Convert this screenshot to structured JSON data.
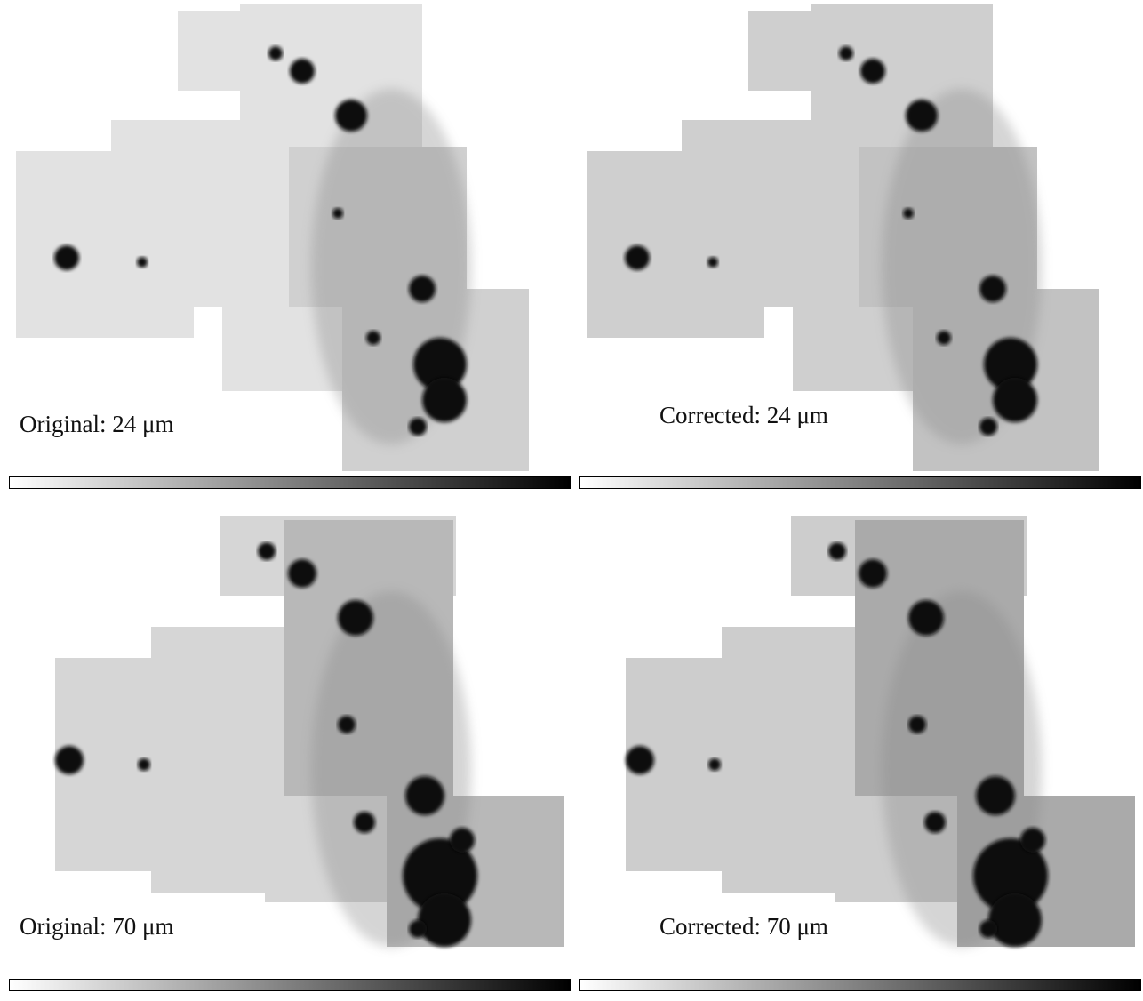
{
  "panels": [
    {
      "label": "Original: 24 μm"
    },
    {
      "label": "Corrected: 24 μm"
    },
    {
      "label": "Original: 70 μm"
    },
    {
      "label": "Corrected: 70 μm"
    }
  ]
}
